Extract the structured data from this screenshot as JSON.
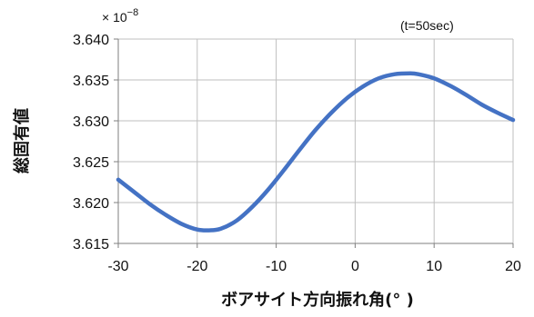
{
  "chart_data": {
    "type": "line",
    "title": "",
    "annotation": "(t=50sec)",
    "multiplier": {
      "prefix": "× 10",
      "exponent": "−8"
    },
    "xlabel": "ボアサイト方向振れ角(° )",
    "ylabel": "総固有値",
    "xlim": [
      -30,
      20
    ],
    "ylim": [
      3.615,
      3.64
    ],
    "x_ticks": [
      "-30",
      "-20",
      "-10",
      "0",
      "10",
      "20"
    ],
    "x_tick_values": [
      -30,
      -20,
      -10,
      0,
      10,
      20
    ],
    "y_ticks": [
      "3.615",
      "3.620",
      "3.625",
      "3.630",
      "3.635",
      "3.640"
    ],
    "y_tick_values": [
      3.615,
      3.62,
      3.625,
      3.63,
      3.635,
      3.64
    ],
    "grid": true,
    "legend": "none",
    "series": [
      {
        "color": "#4472C4",
        "x": [
          -30,
          -28,
          -26,
          -24,
          -22,
          -20,
          -18.5,
          -17,
          -15,
          -13,
          -11,
          -9,
          -7,
          -5,
          -3,
          -1,
          1,
          3,
          5,
          7,
          8,
          10,
          12,
          14,
          16,
          18,
          20
        ],
        "y": [
          3.6228,
          3.6213,
          3.6198,
          3.6185,
          3.6174,
          3.6167,
          3.6166,
          3.6168,
          3.6178,
          3.6195,
          3.6216,
          3.624,
          3.6265,
          3.6289,
          3.631,
          3.6328,
          3.6342,
          3.6352,
          3.6357,
          3.6358,
          3.6357,
          3.6352,
          3.6343,
          3.6332,
          3.632,
          3.631,
          3.6301
        ]
      }
    ]
  }
}
